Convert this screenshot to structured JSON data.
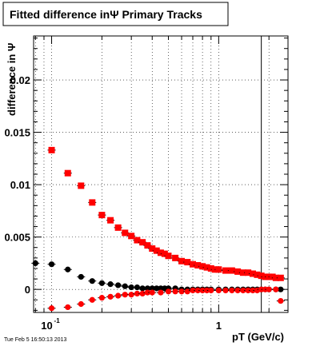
{
  "header": {
    "title": "Fitted difference inΨ   Primary Tracks"
  },
  "timestamp": "Tue Feb  5 16:50:13 2013",
  "colors": {
    "series_primary": "#ff0000",
    "series_secondary": "#000000",
    "frame": "#000000",
    "grid": "#000000"
  },
  "chart_data": {
    "type": "scatter",
    "title": "Fitted difference inΨ   Primary Tracks",
    "xlabel": "pT (GeV/c)",
    "ylabel": "difference in Ψ",
    "xscale": "log",
    "xlim": [
      0.078,
      2.6
    ],
    "ylim": [
      -0.0022,
      0.0242
    ],
    "grid": true,
    "x_ticks": [
      {
        "value": 0.1,
        "label": "10",
        "exp": "-1"
      },
      {
        "value": 1,
        "label": "1",
        "exp": ""
      }
    ],
    "y_ticks": [
      {
        "value": 0,
        "label": "0"
      },
      {
        "value": 0.005,
        "label": "0.005"
      },
      {
        "value": 0.01,
        "label": "0.01"
      },
      {
        "value": 0.015,
        "label": "0.015"
      },
      {
        "value": 0.02,
        "label": "0.02"
      }
    ],
    "vline_x": 1.8,
    "series": [
      {
        "marker": "square",
        "color": "#ff0000",
        "points": [
          [
            0.1,
            0.0133
          ],
          [
            0.125,
            0.0111
          ],
          [
            0.15,
            0.0099
          ],
          [
            0.175,
            0.0083
          ],
          [
            0.2,
            0.0071
          ],
          [
            0.225,
            0.0066
          ],
          [
            0.25,
            0.0059
          ],
          [
            0.275,
            0.0054
          ],
          [
            0.3,
            0.0051
          ],
          [
            0.325,
            0.0047
          ],
          [
            0.35,
            0.0045
          ],
          [
            0.375,
            0.0042
          ],
          [
            0.4,
            0.0039
          ],
          [
            0.425,
            0.0037
          ],
          [
            0.45,
            0.0035
          ],
          [
            0.475,
            0.0034
          ],
          [
            0.5,
            0.0032
          ],
          [
            0.55,
            0.003
          ],
          [
            0.6,
            0.0027
          ],
          [
            0.65,
            0.0026
          ],
          [
            0.7,
            0.0024
          ],
          [
            0.75,
            0.0023
          ],
          [
            0.8,
            0.0022
          ],
          [
            0.85,
            0.0021
          ],
          [
            0.9,
            0.002
          ],
          [
            0.95,
            0.0019
          ],
          [
            1.0,
            0.0019
          ],
          [
            1.1,
            0.0018
          ],
          [
            1.2,
            0.0018
          ],
          [
            1.3,
            0.0017
          ],
          [
            1.4,
            0.0016
          ],
          [
            1.5,
            0.0016
          ],
          [
            1.6,
            0.0015
          ],
          [
            1.7,
            0.0014
          ],
          [
            1.8,
            0.0013
          ],
          [
            1.9,
            0.0012
          ],
          [
            2.0,
            0.0012
          ],
          [
            2.1,
            0.0012
          ],
          [
            2.2,
            0.0011
          ],
          [
            2.35,
            0.0011
          ]
        ]
      },
      {
        "marker": "circle",
        "color": "#000000",
        "points": [
          [
            0.08,
            0.0025
          ],
          [
            0.1,
            0.0024
          ],
          [
            0.125,
            0.0019
          ],
          [
            0.15,
            0.0012
          ],
          [
            0.175,
            0.0008
          ],
          [
            0.2,
            0.0006
          ],
          [
            0.225,
            0.0005
          ],
          [
            0.25,
            0.0004
          ],
          [
            0.275,
            0.0003
          ],
          [
            0.3,
            0.0002
          ],
          [
            0.325,
            0.0002
          ],
          [
            0.35,
            0.0001
          ],
          [
            0.375,
            0.0001
          ],
          [
            0.4,
            0.0001
          ],
          [
            0.425,
            0.0001
          ],
          [
            0.45,
            0.0001
          ],
          [
            0.475,
            0.0001
          ],
          [
            0.5,
            0.0001
          ],
          [
            0.55,
            0.0001
          ],
          [
            0.6,
            0.0
          ],
          [
            0.65,
            0.0
          ],
          [
            0.7,
            0.0
          ],
          [
            0.75,
            0.0
          ],
          [
            0.8,
            0.0
          ],
          [
            0.85,
            0.0
          ],
          [
            0.9,
            0.0
          ],
          [
            1.0,
            0.0
          ],
          [
            1.1,
            0.0
          ],
          [
            1.2,
            0.0
          ],
          [
            1.3,
            0.0
          ],
          [
            1.4,
            0.0
          ],
          [
            1.5,
            0.0
          ],
          [
            1.6,
            0.0
          ],
          [
            1.7,
            0.0
          ],
          [
            1.8,
            0.0
          ],
          [
            1.9,
            0.0
          ],
          [
            2.0,
            0.0
          ],
          [
            2.2,
            0.0
          ],
          [
            2.35,
            0.0
          ]
        ]
      },
      {
        "marker": "circle",
        "color": "#ff0000",
        "points": [
          [
            0.1,
            -0.0018
          ],
          [
            0.125,
            -0.0017
          ],
          [
            0.15,
            -0.0014
          ],
          [
            0.175,
            -0.001
          ],
          [
            0.2,
            -0.0008
          ],
          [
            0.225,
            -0.0007
          ],
          [
            0.25,
            -0.0006
          ],
          [
            0.275,
            -0.0005
          ],
          [
            0.3,
            -0.0005
          ],
          [
            0.325,
            -0.0004
          ],
          [
            0.35,
            -0.0004
          ],
          [
            0.375,
            -0.0003
          ],
          [
            0.4,
            -0.0003
          ],
          [
            0.45,
            -0.0003
          ],
          [
            0.5,
            -0.0002
          ],
          [
            0.55,
            -0.0002
          ],
          [
            0.6,
            -0.0002
          ],
          [
            0.65,
            -0.0002
          ],
          [
            0.7,
            -0.0001
          ],
          [
            0.75,
            -0.0001
          ],
          [
            0.8,
            -0.0001
          ],
          [
            0.85,
            -0.0001
          ],
          [
            0.9,
            -0.0001
          ],
          [
            1.0,
            -0.0001
          ],
          [
            1.1,
            -0.0001
          ],
          [
            1.2,
            -0.0001
          ],
          [
            1.3,
            -0.0001
          ],
          [
            1.4,
            -0.0001
          ],
          [
            1.5,
            -0.0001
          ],
          [
            1.6,
            -0.0001
          ],
          [
            1.7,
            -0.0001
          ],
          [
            1.8,
            0.0
          ],
          [
            1.9,
            0.0
          ],
          [
            2.0,
            0.0
          ],
          [
            2.2,
            0.0
          ],
          [
            2.35,
            -0.0011
          ]
        ]
      }
    ]
  }
}
